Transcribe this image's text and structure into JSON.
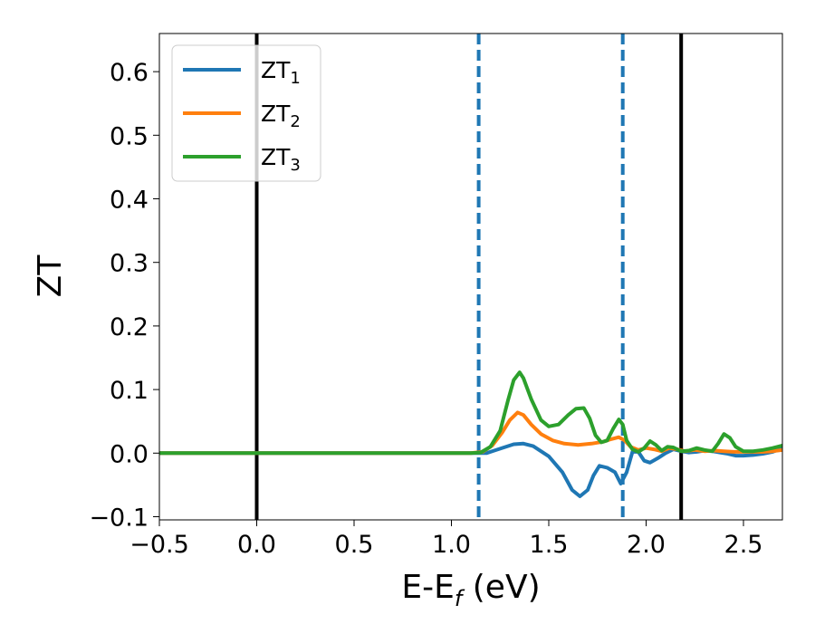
{
  "chart_data": {
    "type": "line",
    "xlabel": "E-E",
    "xlabel_sub": "f",
    "xlabel_unit": " (eV)",
    "ylabel": "ZT",
    "xlim": [
      -0.5,
      2.7
    ],
    "ylim": [
      -0.105,
      0.66
    ],
    "xticks": [
      -0.5,
      0.0,
      0.5,
      1.0,
      1.5,
      2.0,
      2.5
    ],
    "xtick_labels": [
      "−0.5",
      "0.0",
      "0.5",
      "1.0",
      "1.5",
      "2.0",
      "2.5"
    ],
    "yticks": [
      -0.1,
      0.0,
      0.1,
      0.2,
      0.3,
      0.4,
      0.5,
      0.6
    ],
    "ytick_labels": [
      "−0.1",
      "0.0",
      "0.1",
      "0.2",
      "0.3",
      "0.4",
      "0.5",
      "0.6"
    ],
    "legend_position": "upper-left",
    "grid": false,
    "vertical_lines": [
      {
        "x": 0.0,
        "style": "solid",
        "color": "#000000"
      },
      {
        "x": 2.18,
        "style": "solid",
        "color": "#000000"
      },
      {
        "x": 1.14,
        "style": "dashed",
        "color": "#1f77b4"
      },
      {
        "x": 1.88,
        "style": "dashed",
        "color": "#1f77b4"
      }
    ],
    "series": [
      {
        "name": "ZT",
        "subscript": "1",
        "color": "#1f77b4",
        "points": [
          [
            -0.5,
            0
          ],
          [
            1.1,
            0
          ],
          [
            1.18,
            0
          ],
          [
            1.22,
            0.004
          ],
          [
            1.27,
            0.009
          ],
          [
            1.32,
            0.014
          ],
          [
            1.37,
            0.015
          ],
          [
            1.42,
            0.011
          ],
          [
            1.5,
            -0.005
          ],
          [
            1.57,
            -0.03
          ],
          [
            1.62,
            -0.058
          ],
          [
            1.66,
            -0.068
          ],
          [
            1.7,
            -0.058
          ],
          [
            1.73,
            -0.035
          ],
          [
            1.76,
            -0.02
          ],
          [
            1.8,
            -0.023
          ],
          [
            1.84,
            -0.03
          ],
          [
            1.87,
            -0.048
          ],
          [
            1.9,
            -0.03
          ],
          [
            1.93,
            0.002
          ],
          [
            1.96,
            0.002
          ],
          [
            1.99,
            -0.012
          ],
          [
            2.02,
            -0.015
          ],
          [
            2.06,
            -0.008
          ],
          [
            2.1,
            0.0
          ],
          [
            2.14,
            0.006
          ],
          [
            2.18,
            0.003
          ],
          [
            2.22,
            0.001
          ],
          [
            2.26,
            0.002
          ],
          [
            2.3,
            0.004
          ],
          [
            2.34,
            0.003
          ],
          [
            2.38,
            0.001
          ],
          [
            2.42,
            -0.001
          ],
          [
            2.46,
            -0.004
          ],
          [
            2.5,
            -0.004
          ],
          [
            2.55,
            -0.003
          ],
          [
            2.6,
            -0.001
          ],
          [
            2.65,
            0.002
          ],
          [
            2.7,
            0.008
          ]
        ]
      },
      {
        "name": "ZT",
        "subscript": "2",
        "color": "#ff7f0e",
        "points": [
          [
            -0.5,
            0
          ],
          [
            1.1,
            0
          ],
          [
            1.16,
            0.002
          ],
          [
            1.21,
            0.012
          ],
          [
            1.26,
            0.032
          ],
          [
            1.3,
            0.052
          ],
          [
            1.34,
            0.064
          ],
          [
            1.37,
            0.06
          ],
          [
            1.41,
            0.045
          ],
          [
            1.46,
            0.03
          ],
          [
            1.52,
            0.02
          ],
          [
            1.58,
            0.015
          ],
          [
            1.65,
            0.013
          ],
          [
            1.72,
            0.015
          ],
          [
            1.78,
            0.018
          ],
          [
            1.82,
            0.022
          ],
          [
            1.86,
            0.025
          ],
          [
            1.89,
            0.02
          ],
          [
            1.92,
            0.01
          ],
          [
            1.96,
            0.005
          ],
          [
            2.0,
            0.008
          ],
          [
            2.04,
            0.006
          ],
          [
            2.08,
            0.003
          ],
          [
            2.12,
            0.008
          ],
          [
            2.16,
            0.006
          ],
          [
            2.2,
            0.003
          ],
          [
            2.25,
            0.005
          ],
          [
            2.3,
            0.003
          ],
          [
            2.35,
            0.004
          ],
          [
            2.4,
            0.003
          ],
          [
            2.45,
            0.002
          ],
          [
            2.5,
            0.002
          ],
          [
            2.55,
            0.002
          ],
          [
            2.6,
            0.002
          ],
          [
            2.65,
            0.003
          ],
          [
            2.7,
            0.005
          ]
        ]
      },
      {
        "name": "ZT",
        "subscript": "3",
        "color": "#2ca02c",
        "points": [
          [
            -0.5,
            0
          ],
          [
            1.1,
            0
          ],
          [
            1.15,
            0.001
          ],
          [
            1.2,
            0.01
          ],
          [
            1.25,
            0.035
          ],
          [
            1.29,
            0.082
          ],
          [
            1.32,
            0.115
          ],
          [
            1.35,
            0.127
          ],
          [
            1.37,
            0.118
          ],
          [
            1.41,
            0.085
          ],
          [
            1.46,
            0.052
          ],
          [
            1.5,
            0.042
          ],
          [
            1.55,
            0.045
          ],
          [
            1.6,
            0.06
          ],
          [
            1.64,
            0.07
          ],
          [
            1.68,
            0.071
          ],
          [
            1.71,
            0.055
          ],
          [
            1.74,
            0.028
          ],
          [
            1.77,
            0.017
          ],
          [
            1.8,
            0.02
          ],
          [
            1.83,
            0.038
          ],
          [
            1.86,
            0.053
          ],
          [
            1.88,
            0.045
          ],
          [
            1.9,
            0.02
          ],
          [
            1.93,
            0.006
          ],
          [
            1.96,
            0.002
          ],
          [
            1.99,
            0.008
          ],
          [
            2.02,
            0.019
          ],
          [
            2.05,
            0.013
          ],
          [
            2.08,
            0.004
          ],
          [
            2.11,
            0.01
          ],
          [
            2.14,
            0.009
          ],
          [
            2.18,
            0.003
          ],
          [
            2.22,
            0.004
          ],
          [
            2.26,
            0.008
          ],
          [
            2.3,
            0.005
          ],
          [
            2.34,
            0.003
          ],
          [
            2.37,
            0.015
          ],
          [
            2.4,
            0.03
          ],
          [
            2.43,
            0.024
          ],
          [
            2.46,
            0.01
          ],
          [
            2.5,
            0.003
          ],
          [
            2.55,
            0.003
          ],
          [
            2.6,
            0.005
          ],
          [
            2.65,
            0.008
          ],
          [
            2.7,
            0.012
          ]
        ]
      }
    ]
  }
}
